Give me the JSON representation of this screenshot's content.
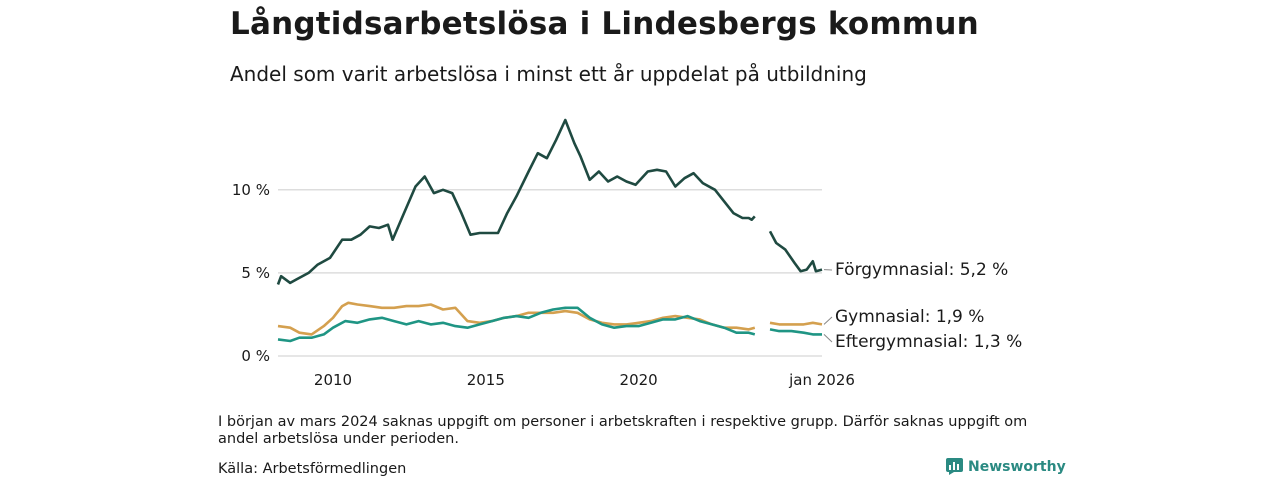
{
  "title": "Långtidsarbetslösa i Lindesbergs kommun",
  "subtitle": "Andel som varit arbetslösa i minst ett år uppdelat på utbildning",
  "note": "I början av mars 2024 saknas uppgift om personer i arbetskraften i respektive grupp. Därför saknas uppgift om andel arbetslösa under perioden.",
  "source": "Källa: Arbetsförmedlingen",
  "brand": "Newsworthy",
  "colors": {
    "forgymnasial": "#1f4a41",
    "gymnasial": "#d4a04f",
    "eftergymnasial": "#1f9584",
    "grid": "#dddddd"
  },
  "chart_data": {
    "type": "line",
    "x_unit": "year",
    "xlim": [
      2008.2,
      2026.0
    ],
    "ylim": [
      0,
      14.5
    ],
    "x_ticks": [
      {
        "value": 2010,
        "label": "2010"
      },
      {
        "value": 2015,
        "label": "2015"
      },
      {
        "value": 2020,
        "label": "2020"
      },
      {
        "value": 2026,
        "label": "jan 2026"
      }
    ],
    "y_ticks": [
      {
        "value": 0,
        "label": "0 %"
      },
      {
        "value": 5,
        "label": "5 %"
      },
      {
        "value": 10,
        "label": "10 %"
      }
    ],
    "gap": [
      2023.9,
      2024.25
    ],
    "series": [
      {
        "key": "forgymnasial",
        "name": "Förgymnasial",
        "end_label": "Förgymnasial: 5,2 %",
        "points": [
          [
            2008.2,
            4.3
          ],
          [
            2008.3,
            4.8
          ],
          [
            2008.6,
            4.4
          ],
          [
            2008.8,
            4.6
          ],
          [
            2009.2,
            5.0
          ],
          [
            2009.5,
            5.5
          ],
          [
            2009.9,
            5.9
          ],
          [
            2010.3,
            7.0
          ],
          [
            2010.6,
            7.0
          ],
          [
            2010.9,
            7.3
          ],
          [
            2011.2,
            7.8
          ],
          [
            2011.5,
            7.7
          ],
          [
            2011.8,
            7.9
          ],
          [
            2011.95,
            7.0
          ],
          [
            2012.3,
            8.5
          ],
          [
            2012.7,
            10.2
          ],
          [
            2013.0,
            10.8
          ],
          [
            2013.3,
            9.8
          ],
          [
            2013.6,
            10.0
          ],
          [
            2013.9,
            9.8
          ],
          [
            2014.2,
            8.6
          ],
          [
            2014.5,
            7.3
          ],
          [
            2014.8,
            7.4
          ],
          [
            2015.0,
            7.4
          ],
          [
            2015.4,
            7.4
          ],
          [
            2015.7,
            8.6
          ],
          [
            2016.0,
            9.6
          ],
          [
            2016.4,
            11.1
          ],
          [
            2016.7,
            12.2
          ],
          [
            2017.0,
            11.9
          ],
          [
            2017.3,
            13.0
          ],
          [
            2017.6,
            14.2
          ],
          [
            2017.9,
            12.8
          ],
          [
            2018.1,
            12.0
          ],
          [
            2018.4,
            10.6
          ],
          [
            2018.7,
            11.1
          ],
          [
            2019.0,
            10.5
          ],
          [
            2019.3,
            10.8
          ],
          [
            2019.6,
            10.5
          ],
          [
            2019.9,
            10.3
          ],
          [
            2020.3,
            11.1
          ],
          [
            2020.6,
            11.2
          ],
          [
            2020.9,
            11.1
          ],
          [
            2021.2,
            10.2
          ],
          [
            2021.5,
            10.7
          ],
          [
            2021.8,
            11.0
          ],
          [
            2022.1,
            10.4
          ],
          [
            2022.5,
            10.0
          ],
          [
            2022.8,
            9.3
          ],
          [
            2023.1,
            8.6
          ],
          [
            2023.4,
            8.3
          ],
          [
            2023.6,
            8.3
          ],
          [
            2023.7,
            8.2
          ],
          [
            2023.8,
            8.4
          ],
          [
            null,
            null
          ],
          [
            2024.3,
            7.5
          ],
          [
            2024.5,
            6.8
          ],
          [
            2024.8,
            6.4
          ],
          [
            2025.1,
            5.6
          ],
          [
            2025.3,
            5.1
          ],
          [
            2025.5,
            5.2
          ],
          [
            2025.7,
            5.7
          ],
          [
            2025.8,
            5.1
          ],
          [
            2026.0,
            5.2
          ]
        ]
      },
      {
        "key": "gymnasial",
        "name": "Gymnasial",
        "end_label": "Gymnasial: 1,9 %",
        "points": [
          [
            2008.2,
            1.8
          ],
          [
            2008.6,
            1.7
          ],
          [
            2008.9,
            1.4
          ],
          [
            2009.3,
            1.3
          ],
          [
            2009.7,
            1.8
          ],
          [
            2010.0,
            2.3
          ],
          [
            2010.3,
            3.0
          ],
          [
            2010.5,
            3.2
          ],
          [
            2010.8,
            3.1
          ],
          [
            2011.2,
            3.0
          ],
          [
            2011.6,
            2.9
          ],
          [
            2012.0,
            2.9
          ],
          [
            2012.4,
            3.0
          ],
          [
            2012.8,
            3.0
          ],
          [
            2013.2,
            3.1
          ],
          [
            2013.6,
            2.8
          ],
          [
            2014.0,
            2.9
          ],
          [
            2014.4,
            2.1
          ],
          [
            2014.8,
            2.0
          ],
          [
            2015.2,
            2.1
          ],
          [
            2015.6,
            2.3
          ],
          [
            2016.0,
            2.4
          ],
          [
            2016.4,
            2.6
          ],
          [
            2016.8,
            2.6
          ],
          [
            2017.2,
            2.6
          ],
          [
            2017.6,
            2.7
          ],
          [
            2018.0,
            2.6
          ],
          [
            2018.4,
            2.2
          ],
          [
            2018.8,
            2.0
          ],
          [
            2019.2,
            1.9
          ],
          [
            2019.6,
            1.9
          ],
          [
            2020.0,
            2.0
          ],
          [
            2020.4,
            2.1
          ],
          [
            2020.8,
            2.3
          ],
          [
            2021.2,
            2.4
          ],
          [
            2021.6,
            2.3
          ],
          [
            2022.0,
            2.2
          ],
          [
            2022.4,
            1.9
          ],
          [
            2022.8,
            1.7
          ],
          [
            2023.2,
            1.7
          ],
          [
            2023.6,
            1.6
          ],
          [
            2023.8,
            1.7
          ],
          [
            null,
            null
          ],
          [
            2024.3,
            2.0
          ],
          [
            2024.6,
            1.9
          ],
          [
            2025.0,
            1.9
          ],
          [
            2025.4,
            1.9
          ],
          [
            2025.7,
            2.0
          ],
          [
            2026.0,
            1.9
          ]
        ]
      },
      {
        "key": "eftergymnasial",
        "name": "Eftergymnasial",
        "end_label": "Eftergymnasial: 1,3 %",
        "points": [
          [
            2008.2,
            1.0
          ],
          [
            2008.6,
            0.9
          ],
          [
            2008.9,
            1.1
          ],
          [
            2009.3,
            1.1
          ],
          [
            2009.7,
            1.3
          ],
          [
            2010.0,
            1.7
          ],
          [
            2010.4,
            2.1
          ],
          [
            2010.8,
            2.0
          ],
          [
            2011.2,
            2.2
          ],
          [
            2011.6,
            2.3
          ],
          [
            2012.0,
            2.1
          ],
          [
            2012.4,
            1.9
          ],
          [
            2012.8,
            2.1
          ],
          [
            2013.2,
            1.9
          ],
          [
            2013.6,
            2.0
          ],
          [
            2014.0,
            1.8
          ],
          [
            2014.4,
            1.7
          ],
          [
            2014.8,
            1.9
          ],
          [
            2015.2,
            2.1
          ],
          [
            2015.6,
            2.3
          ],
          [
            2016.0,
            2.4
          ],
          [
            2016.4,
            2.3
          ],
          [
            2016.8,
            2.6
          ],
          [
            2017.2,
            2.8
          ],
          [
            2017.6,
            2.9
          ],
          [
            2018.0,
            2.9
          ],
          [
            2018.4,
            2.3
          ],
          [
            2018.8,
            1.9
          ],
          [
            2019.2,
            1.7
          ],
          [
            2019.6,
            1.8
          ],
          [
            2020.0,
            1.8
          ],
          [
            2020.4,
            2.0
          ],
          [
            2020.8,
            2.2
          ],
          [
            2021.2,
            2.2
          ],
          [
            2021.6,
            2.4
          ],
          [
            2022.0,
            2.1
          ],
          [
            2022.4,
            1.9
          ],
          [
            2022.8,
            1.7
          ],
          [
            2023.2,
            1.4
          ],
          [
            2023.6,
            1.4
          ],
          [
            2023.8,
            1.3
          ],
          [
            null,
            null
          ],
          [
            2024.3,
            1.6
          ],
          [
            2024.6,
            1.5
          ],
          [
            2025.0,
            1.5
          ],
          [
            2025.4,
            1.4
          ],
          [
            2025.7,
            1.3
          ],
          [
            2026.0,
            1.3
          ]
        ]
      }
    ]
  }
}
